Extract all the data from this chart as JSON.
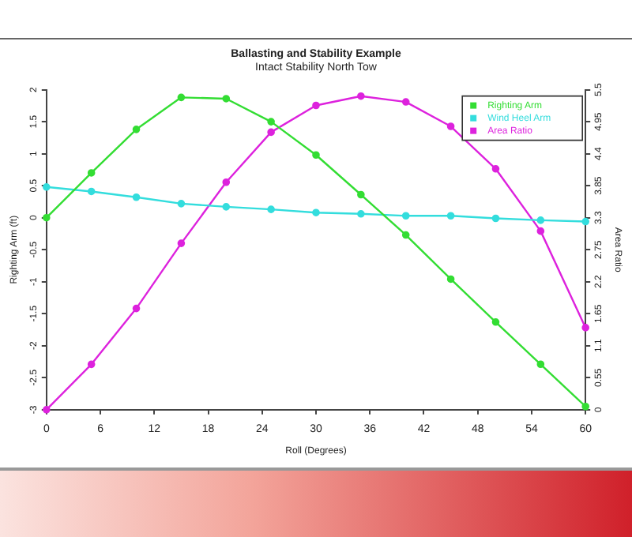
{
  "chart_data": {
    "type": "line",
    "title": "Ballasting and Stability Example",
    "subtitle": "Intact Stability North Tow",
    "xlabel": "Roll (Degrees)",
    "ylabel": "Righting Arm (ft)",
    "y2label": "Area Ratio",
    "x": [
      0,
      5,
      10,
      15,
      20,
      25,
      30,
      35,
      40,
      45,
      50,
      55,
      60
    ],
    "series": [
      {
        "name": "Righting Arm",
        "color": "#33dd33",
        "values": [
          0,
          0.7,
          1.38,
          1.88,
          1.86,
          1.5,
          0.98,
          0.36,
          -0.27,
          -0.96,
          -1.63,
          -2.29,
          -2.95
        ]
      },
      {
        "name": "Wind Heel Arm",
        "color": "#33dddd",
        "values": [
          0.48,
          0.41,
          0.32,
          0.22,
          0.17,
          0.13,
          0.08,
          0.06,
          0.03,
          0.03,
          -0.01,
          -0.04,
          -0.06
        ]
      },
      {
        "name": "Area Ratio",
        "color": "#dd22dd",
        "axis": "y2",
        "values": [
          0,
          0.78,
          1.74,
          2.86,
          3.91,
          4.77,
          5.23,
          5.39,
          5.29,
          4.87,
          4.14,
          3.07,
          1.41
        ]
      }
    ],
    "xlim": [
      0,
      60
    ],
    "xticks": [
      0,
      6,
      12,
      18,
      24,
      30,
      36,
      42,
      48,
      54,
      60
    ],
    "ylim": [
      -3,
      2
    ],
    "yticks": [
      -3,
      -2.5,
      -2,
      -1.5,
      -1,
      -0.5,
      0,
      0.5,
      1,
      1.5,
      2
    ],
    "y2lim": [
      0,
      5.5
    ],
    "y2ticks": [
      0,
      0.55,
      1.1,
      1.65,
      2.2,
      2.75,
      3.3,
      3.85,
      4.4,
      4.95,
      5.5
    ],
    "grid": false,
    "legend": "top right",
    "marker": "circle",
    "line_style": "solid"
  }
}
